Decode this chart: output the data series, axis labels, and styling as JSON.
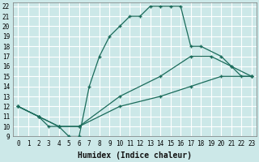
{
  "xlabel": "Humidex (Indice chaleur)",
  "bg_color": "#cce8e8",
  "grid_color": "#ffffff",
  "line_color": "#1a6b5a",
  "xlim": [
    -0.5,
    23.5
  ],
  "ylim": [
    9,
    22.4
  ],
  "xticks": [
    0,
    1,
    2,
    3,
    4,
    5,
    6,
    7,
    8,
    9,
    10,
    11,
    12,
    13,
    14,
    15,
    16,
    17,
    18,
    19,
    20,
    21,
    22,
    23
  ],
  "yticks": [
    9,
    10,
    11,
    12,
    13,
    14,
    15,
    16,
    17,
    18,
    19,
    20,
    21,
    22
  ],
  "line1_x": [
    0,
    2,
    3,
    4,
    5,
    6,
    7,
    8,
    9,
    10,
    11,
    12,
    13,
    14,
    15,
    16,
    17,
    18,
    20,
    21,
    22,
    23
  ],
  "line1_y": [
    12,
    11,
    10,
    10,
    9,
    9,
    14,
    17,
    19,
    20,
    21,
    21,
    22,
    22,
    22,
    22,
    18,
    18,
    17,
    16,
    15,
    15
  ],
  "line2_x": [
    0,
    2,
    4,
    6,
    10,
    14,
    17,
    20,
    23
  ],
  "line2_y": [
    12,
    11,
    10,
    10,
    12,
    13,
    14,
    15,
    15
  ],
  "line3_x": [
    0,
    2,
    4,
    6,
    10,
    14,
    17,
    19,
    21,
    23
  ],
  "line3_y": [
    12,
    11,
    10,
    10,
    13,
    15,
    17,
    17,
    16,
    15
  ],
  "xlabel_fontsize": 7,
  "tick_fontsize": 5.5
}
